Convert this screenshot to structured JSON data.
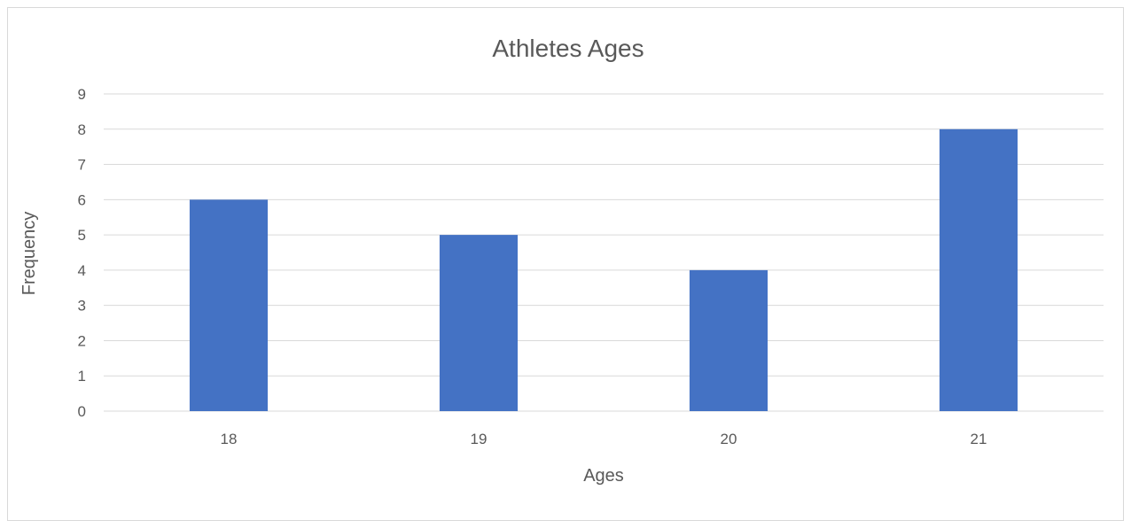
{
  "chart_data": {
    "type": "bar",
    "title": "Athletes Ages",
    "xlabel": "Ages",
    "ylabel": "Frequency",
    "categories": [
      "18",
      "19",
      "20",
      "21"
    ],
    "values": [
      6,
      5,
      4,
      8
    ],
    "ylim": [
      0,
      9
    ],
    "yticks": [
      0,
      1,
      2,
      3,
      4,
      5,
      6,
      7,
      8,
      9
    ],
    "grid": true,
    "bar_color": "#4472c4"
  }
}
